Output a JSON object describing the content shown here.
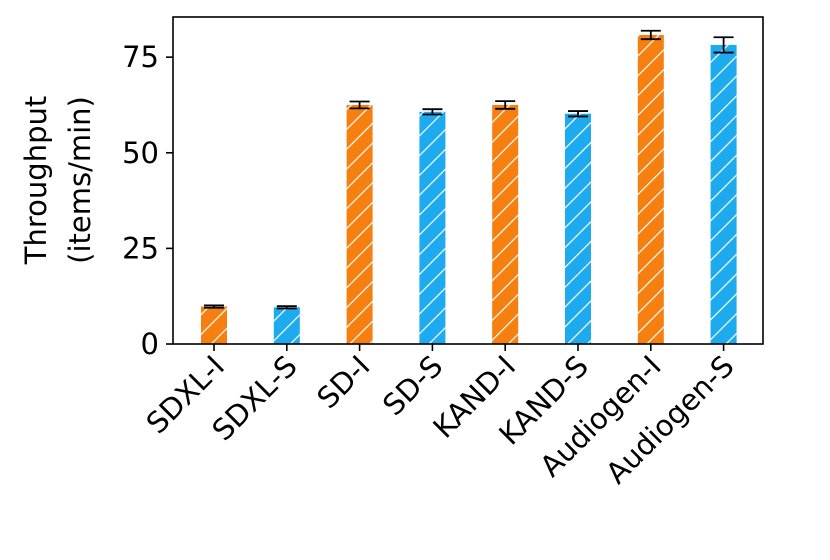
{
  "chart_data": {
    "type": "bar",
    "categories": [
      "SDXL-I",
      "SDXL-S",
      "SD-I",
      "SD-S",
      "KAND-I",
      "KAND-S",
      "Audiogen-I",
      "Audiogen-S"
    ],
    "values": [
      9.8,
      9.6,
      62.5,
      60.7,
      62.5,
      60.2,
      80.8,
      78.2
    ],
    "errors": [
      0.3,
      0.3,
      0.9,
      0.7,
      1.0,
      0.7,
      1.1,
      2.0
    ],
    "bar_colors": [
      "#f57f0f",
      "#1eaaef",
      "#f57f0f",
      "#1eaaef",
      "#f57f0f",
      "#1eaaef",
      "#f57f0f",
      "#1eaaef"
    ],
    "hatch": "diagonal white lines",
    "ylabel_line1": "Throughput",
    "ylabel_line2": "(items/min)",
    "ylim": [
      0,
      85.5
    ],
    "yticks": [
      0,
      25,
      50,
      75
    ],
    "ytick_labels": [
      "0",
      "25",
      "50",
      "75"
    ],
    "grid": false,
    "legend": "none"
  }
}
